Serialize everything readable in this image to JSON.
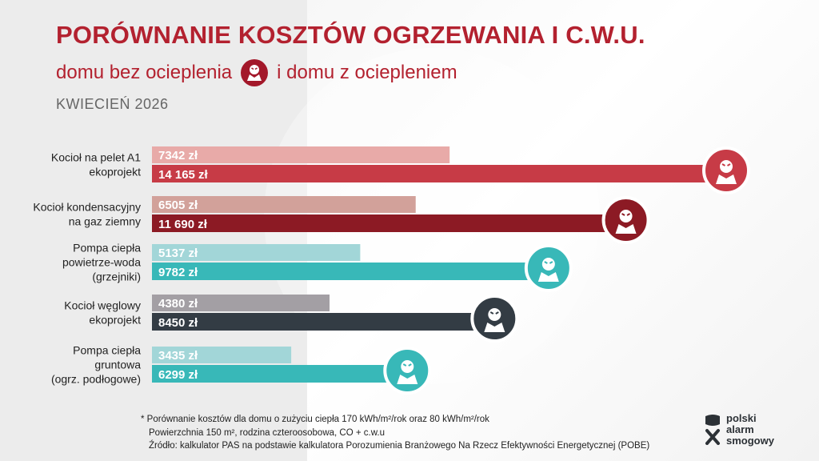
{
  "header": {
    "title": "PORÓWNANIE KOSZTÓW OGRZEWANIA I C.W.U.",
    "subtitle_left": "domu bez ocieplenia",
    "subtitle_right": "i domu z ociepleniem",
    "date": "KWIECIEŃ 2026"
  },
  "chart_data": {
    "type": "bar",
    "orientation": "horizontal",
    "categories": [
      [
        "Kocioł na pelet A1",
        "ekoprojekt"
      ],
      [
        "Kocioł kondensacyjny",
        "na gaz ziemny"
      ],
      [
        "Pompa ciepła",
        "powietrze-woda",
        "(grzejniki)"
      ],
      [
        "Kocioł węglowy",
        "ekoprojekt"
      ],
      [
        "Pompa ciepła",
        "gruntowa",
        "(ogrz. podłogowe)"
      ]
    ],
    "series": [
      {
        "values": [
          7342,
          6505,
          5137,
          4380,
          3435
        ],
        "labels": [
          "7342 zł",
          "6505 zł",
          "5137 zł",
          "4380 zł",
          "3435 zł"
        ]
      },
      {
        "values": [
          14165,
          11690,
          9782,
          8450,
          6299
        ],
        "labels": [
          "14 165 zł",
          "11 690 zł",
          "9782 zł",
          "8450 zł",
          "6299 zł"
        ]
      }
    ],
    "colors_light": [
      "#e8aaa8",
      "#d2a19a",
      "#a2d6d8",
      "#a39fa4",
      "#a2d6d8"
    ],
    "colors_dark": [
      "#c73b46",
      "#8c1a24",
      "#38b8b8",
      "#333c44",
      "#38b8b8"
    ],
    "xlim": [
      0,
      14165
    ]
  },
  "footnote": {
    "line1": "* Porównanie kosztów dla domu o zużyciu ciepła 170 kWh/m²/rok oraz 80 kWh/m²/rok",
    "line2": "Powierzchnia 150 m², rodzina czteroosobowa, CO + c.w.u",
    "line3": "Źródło: kalkulator PAS na podstawie kalkulatora Porozumienia Branżowego Na Rzecz Efektywności Energetycznej (POBE)"
  },
  "logo": {
    "line1": "polski",
    "line2": "alarm",
    "line3": "smogowy",
    "icon": "smog-mask-icon"
  }
}
